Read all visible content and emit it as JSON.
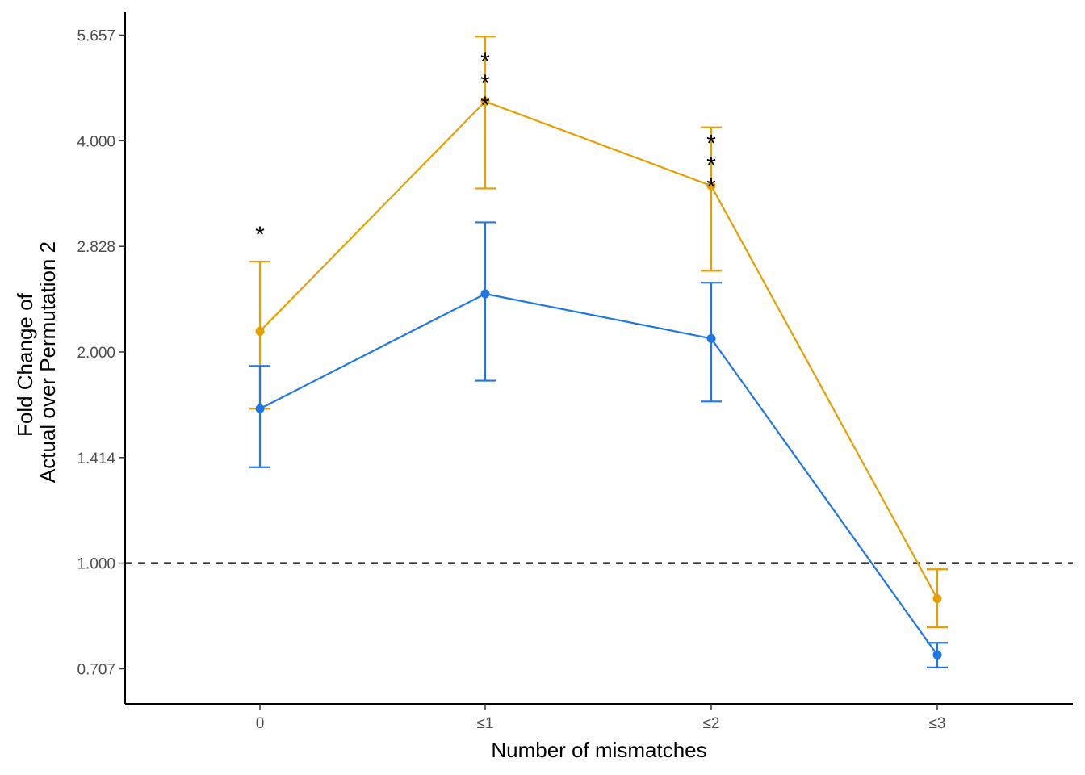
{
  "chart_data": {
    "type": "line",
    "xlabel": "Number of mismatches",
    "ylabel_lines": [
      "Fold Change of",
      "Actual over Permutation 2"
    ],
    "categories": [
      "0",
      "≤1",
      "≤2",
      "≤3"
    ],
    "y_scale": "log2",
    "ylim": [
      0.63,
      6.1
    ],
    "y_ticks": [
      0.707,
      1.0,
      1.414,
      2.0,
      2.828,
      4.0,
      5.657
    ],
    "y_tick_labels": [
      "0.707",
      "1.000",
      "1.414",
      "2.000",
      "2.828",
      "4.000",
      "5.657"
    ],
    "reference_line": {
      "y": 1.0,
      "style": "dashed"
    },
    "grid": false,
    "legend": "none",
    "series": [
      {
        "color": "#E69F00",
        "values": [
          2.14,
          4.55,
          3.45,
          0.89
        ],
        "lower": [
          1.66,
          3.42,
          2.61,
          0.81
        ],
        "upper": [
          2.69,
          5.63,
          4.18,
          0.98
        ]
      },
      {
        "color": "#1F77E4",
        "values": [
          1.66,
          2.42,
          2.09,
          0.74
        ],
        "lower": [
          1.37,
          1.82,
          1.7,
          0.71
        ],
        "upper": [
          1.91,
          3.06,
          2.51,
          0.77
        ]
      }
    ],
    "annotations": [
      {
        "category": "0",
        "text": "*",
        "count": 1,
        "y": 3.0
      },
      {
        "category": "≤1",
        "text": "*",
        "count": 3,
        "y": 5.3
      },
      {
        "category": "≤2",
        "text": "*",
        "count": 3,
        "y": 4.05
      }
    ]
  }
}
